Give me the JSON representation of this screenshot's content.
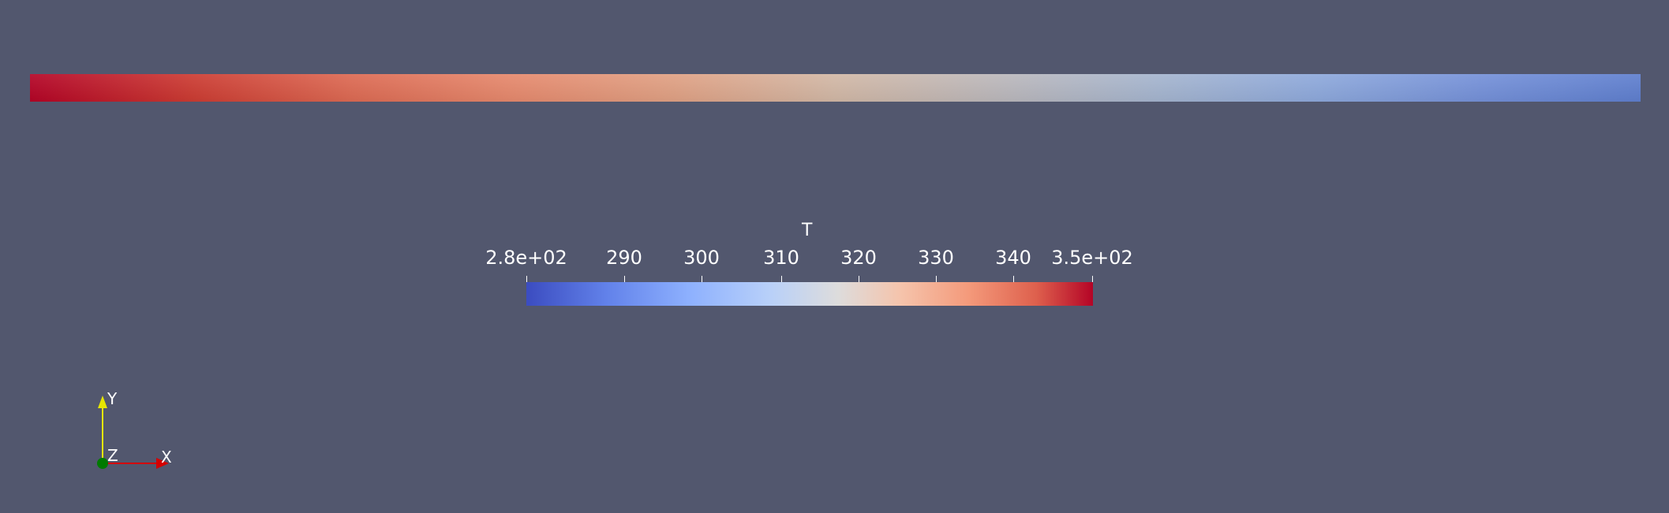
{
  "scalar_bar": {
    "title": "T",
    "tick_labels": [
      "2.8e+02",
      "290",
      "300",
      "310",
      "320",
      "330",
      "340",
      "3.5e+02"
    ],
    "colormap": "cool-to-warm",
    "colors": {
      "low": "#3b4cc0",
      "mid": "#dddcdc",
      "high": "#b40426"
    }
  },
  "orientation_axes": {
    "x_label": "X",
    "y_label": "Y",
    "z_label": "Z",
    "x_color": "#d40000",
    "y_color": "#e6e600",
    "z_color": "#007a00"
  },
  "background_color": "#52576e"
}
